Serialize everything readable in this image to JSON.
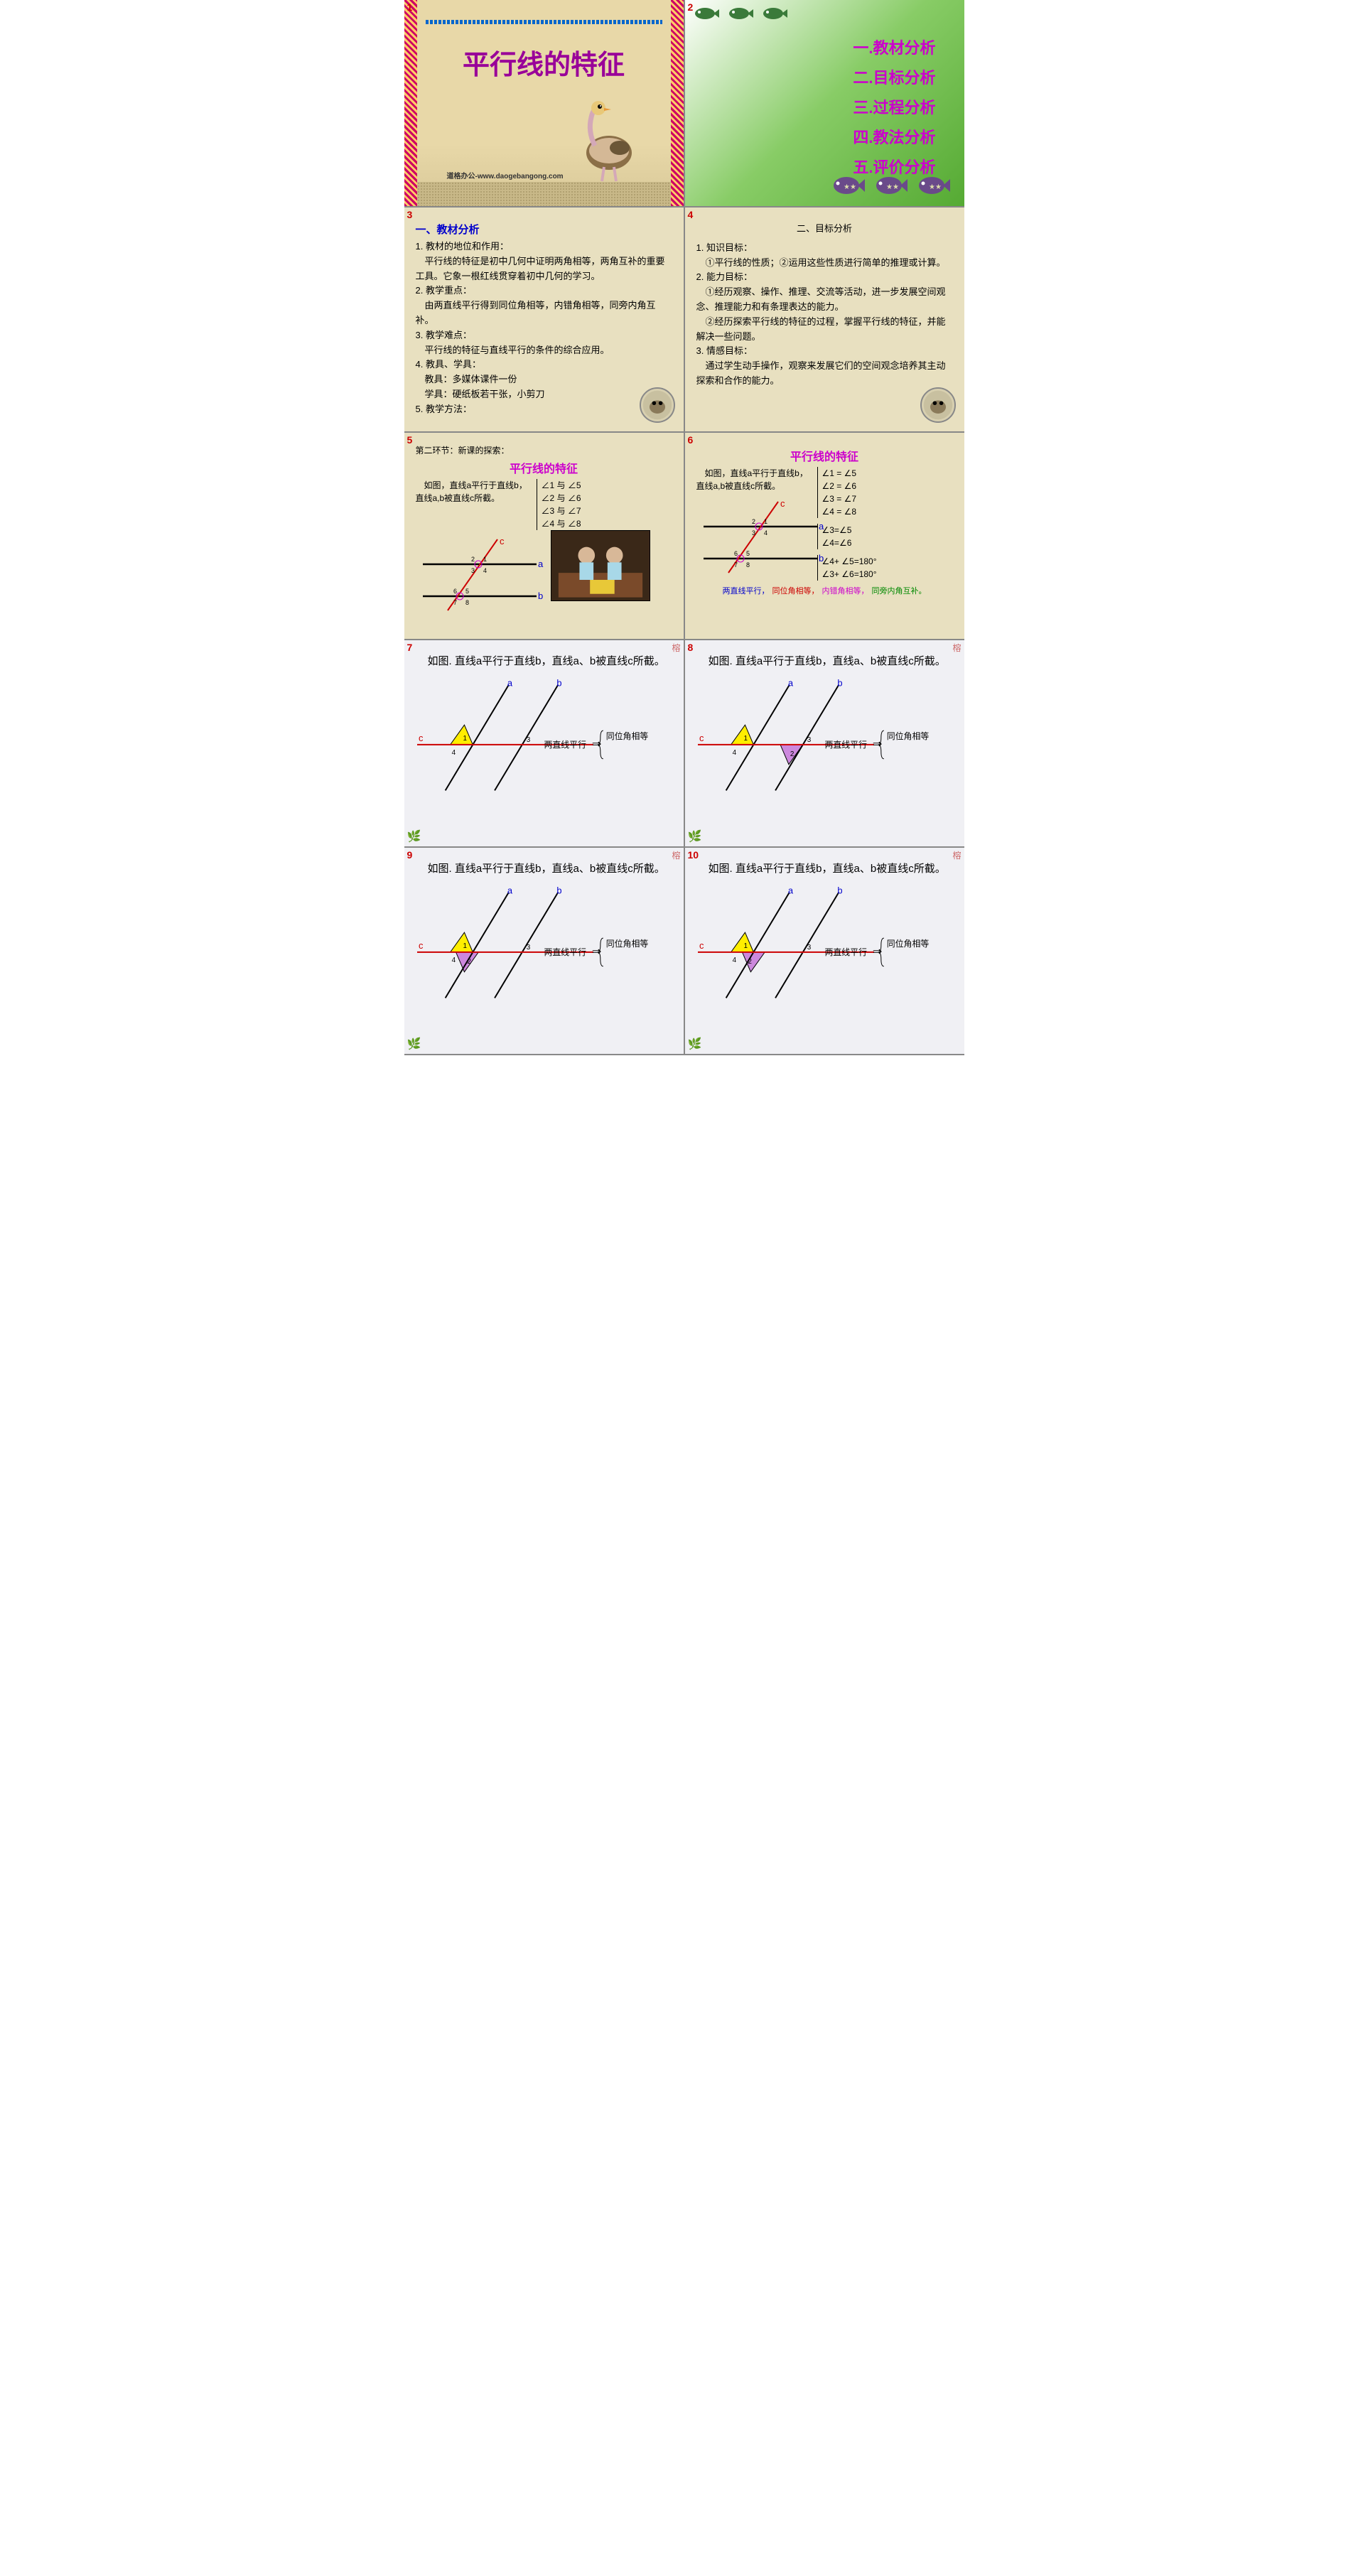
{
  "s1": {
    "title": "平行线的特征",
    "url": "道格办公-www.daogebangong.com",
    "colors": {
      "title": "#990099",
      "bg": "#e8d8a8"
    }
  },
  "s2": {
    "items": [
      "一.教材分析",
      "二.目标分析",
      "三.过程分析",
      "四.教法分析",
      "五.评价分析"
    ],
    "colors": {
      "text": "#cc00cc"
    }
  },
  "s3": {
    "title": "一、教材分析",
    "body": "1. 教材的地位和作用：\n　平行线的特征是初中几何中证明两角相等，两角互补的重要工具。它象一根红线贯穿着初中几何的学习。\n2. 教学重点：\n　由两直线平行得到同位角相等，内错角相等，同旁内角互补。\n3. 教学难点：\n　平行线的特征与直线平行的条件的综合应用。\n4. 教具、学具：\n　教具：多媒体课件一份\n　学具：硬纸板若干张，小剪刀\n5. 教学方法："
  },
  "s4": {
    "title": "二、目标分析",
    "body": "1. 知识目标：\n　①平行线的性质；②运用这些性质进行简单的推理或计算。\n2. 能力目标：\n　①经历观察、操作、推理、交流等活动，进一步发展空间观念、推理能力和有条理表达的能力。\n　②经历探索平行线的特征的过程，掌握平行线的特征，并能解决一些问题。\n3. 情感目标：\n　通过学生动手操作，观察来发展它们的空间观念培养其主动探索和合作的能力。"
  },
  "s5": {
    "header": "第二环节：新课的探索：",
    "title": "平行线的特征",
    "intro": "　如图，直线a平行于直线b，直线a,b被直线c所截。",
    "angles": [
      "∠1 与 ∠5",
      "∠2 与 ∠6",
      "∠3 与 ∠7",
      "∠4 与 ∠8"
    ],
    "diagram": {
      "line_a": "a",
      "line_b": "b",
      "line_c": "c",
      "nums": [
        "1",
        "2",
        "3",
        "4",
        "5",
        "6",
        "7",
        "8"
      ]
    }
  },
  "s6": {
    "title": "平行线的特征",
    "intro": "　如图，直线a平行于直线b，直线a,b被直线c所截。",
    "angles1": [
      "∠1 =  ∠5",
      "∠2 =  ∠6",
      "∠3 =  ∠7",
      "∠4 =  ∠8"
    ],
    "angles2": [
      "∠3=∠5",
      "∠4=∠6"
    ],
    "angles3": [
      "∠4+ ∠5=180°",
      "∠3+ ∠6=180°"
    ],
    "conclusion_parts": [
      {
        "text": "两直线平行，",
        "color": "#0000cc"
      },
      {
        "text": "同位角相等，",
        "color": "#cc0000"
      },
      {
        "text": "内错角相等，",
        "color": "#cc00cc"
      },
      {
        "text": "同旁内角互补。",
        "color": "#008800"
      }
    ],
    "diagram": {
      "line_a": "a",
      "line_b": "b",
      "line_c": "c",
      "nums": [
        "1",
        "2",
        "3",
        "4",
        "5",
        "6",
        "7",
        "8"
      ]
    }
  },
  "s710_common": {
    "text": "　如图. 直线a平行于直线b，直线a、b被直线c所截。",
    "label_a": "a",
    "label_b": "b",
    "label_c": "c",
    "nums": [
      "1",
      "2",
      "3",
      "4"
    ],
    "implies_left": "两直线平行",
    "implies_right": "同位角相等",
    "colors": {
      "line_angled": "#000000",
      "line_horiz": "#cc0000",
      "tri1_fill": "#ffee00",
      "tri2_fill": "#cc88dd",
      "label_ab": "#0000cc",
      "label_c": "#cc0000"
    }
  },
  "s7": {
    "show_tri2": false,
    "tri2_pos": "none"
  },
  "s8": {
    "show_tri2": true,
    "tri2_pos": "below_right"
  },
  "s9": {
    "show_tri2": true,
    "tri2_pos": "overlap"
  },
  "s10": {
    "show_tri2": true,
    "tri2_pos": "overlap_shift"
  }
}
